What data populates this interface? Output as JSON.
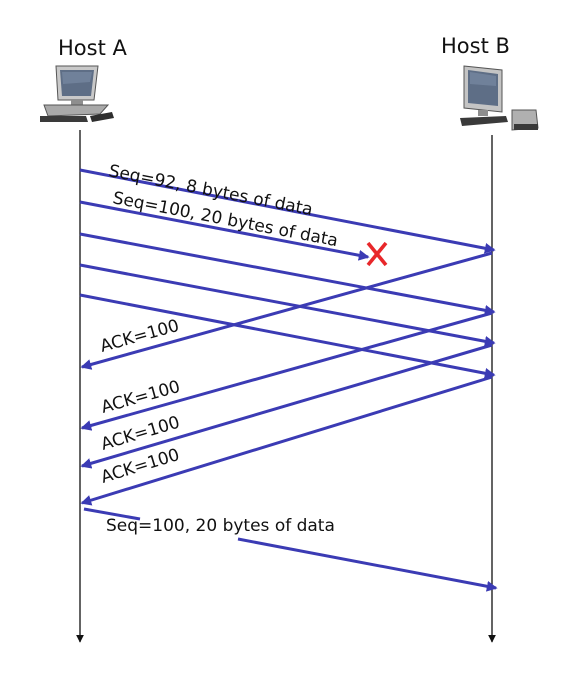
{
  "hosts": {
    "a": {
      "label": "Host A",
      "icon": "desktop-computer-icon"
    },
    "b": {
      "label": "Host B",
      "icon": "desktop-computer-icon"
    }
  },
  "messages": {
    "seq92": "Seq=92, 8 bytes of data",
    "seq100": "Seq=100, 20 bytes of data",
    "ack1": "ACK=100",
    "ack2": "ACK=100",
    "ack3": "ACK=100",
    "ack4": "ACK=100",
    "retransmit": "Seq=100, 20 bytes of data"
  },
  "loss_marker": {
    "icon": "loss-x-icon"
  },
  "colors": {
    "arrow": "#3b3bb4",
    "loss": "#e8272a",
    "timeline": "#111111"
  }
}
